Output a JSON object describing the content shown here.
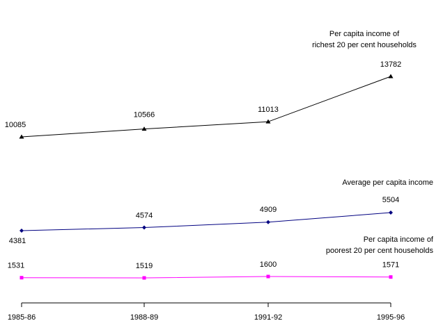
{
  "chart_data": {
    "type": "line",
    "categories": [
      "1985-86",
      "1988-89",
      "1991-92",
      "1995-96"
    ],
    "series": [
      {
        "name": "Per capita income of richest 20 per cent households",
        "name_lines": [
          "Per capita income of",
          "richest 20 per cent households"
        ],
        "values": [
          10085,
          10566,
          11013,
          13782
        ],
        "color": "#000000",
        "marker": "triangle"
      },
      {
        "name": "Average per capita income",
        "name_lines": [
          "Average per capita income"
        ],
        "values": [
          4381,
          4574,
          4909,
          5504
        ],
        "color": "#000080",
        "marker": "diamond"
      },
      {
        "name": "Per capita income of poorest 20 per cent households",
        "name_lines": [
          "Per capita income of",
          "poorest 20 per cent households"
        ],
        "values": [
          1531,
          1519,
          1600,
          1571
        ],
        "color": "#ff00ff",
        "marker": "square"
      }
    ],
    "title": "",
    "xlabel": "",
    "ylabel": "",
    "grid": false,
    "legend": "series labels placed at right end of each line",
    "axis_color": "#000000"
  }
}
